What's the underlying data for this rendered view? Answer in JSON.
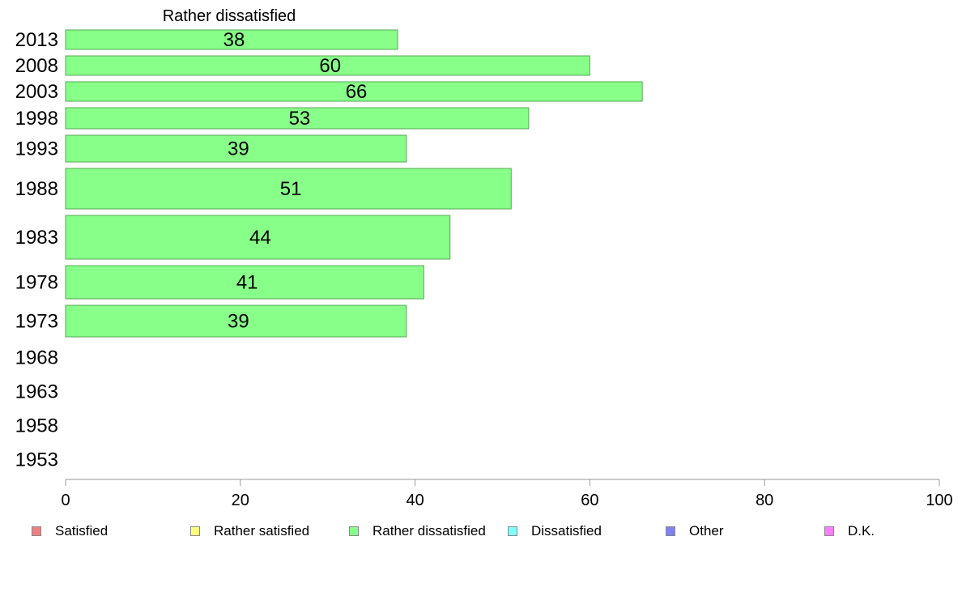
{
  "chart_data": {
    "type": "bar",
    "orientation": "horizontal",
    "title": "Rather dissatisfied",
    "categories": [
      "2013",
      "2008",
      "2003",
      "1998",
      "1993",
      "1988",
      "1983",
      "1978",
      "1973",
      "1968",
      "1963",
      "1958",
      "1953"
    ],
    "series": [
      {
        "name": "Rather dissatisfied",
        "values": [
          38,
          60,
          66,
          53,
          39,
          51,
          44,
          41,
          39,
          null,
          null,
          null,
          null
        ]
      }
    ],
    "value_labels": [
      "38",
      "60",
      "66",
      "53",
      "39",
      "51",
      "44",
      "41",
      "39",
      "",
      "",
      "",
      ""
    ],
    "xlim": [
      0,
      100
    ],
    "x_ticks": [
      0,
      20,
      40,
      60,
      80,
      100
    ],
    "bar_color": "#88ff88",
    "bar_stroke": "#55aa55",
    "grid": false,
    "legend_position": "bottom",
    "legend": [
      {
        "label": "Satisfied",
        "color": "#f08080"
      },
      {
        "label": "Rather satisfied",
        "color": "#ffff80"
      },
      {
        "label": "Rather dissatisfied",
        "color": "#88ff88"
      },
      {
        "label": "Dissatisfied",
        "color": "#80ffff"
      },
      {
        "label": "Other",
        "color": "#8080f0"
      },
      {
        "label": "D.K.",
        "color": "#ff80ff"
      }
    ]
  }
}
